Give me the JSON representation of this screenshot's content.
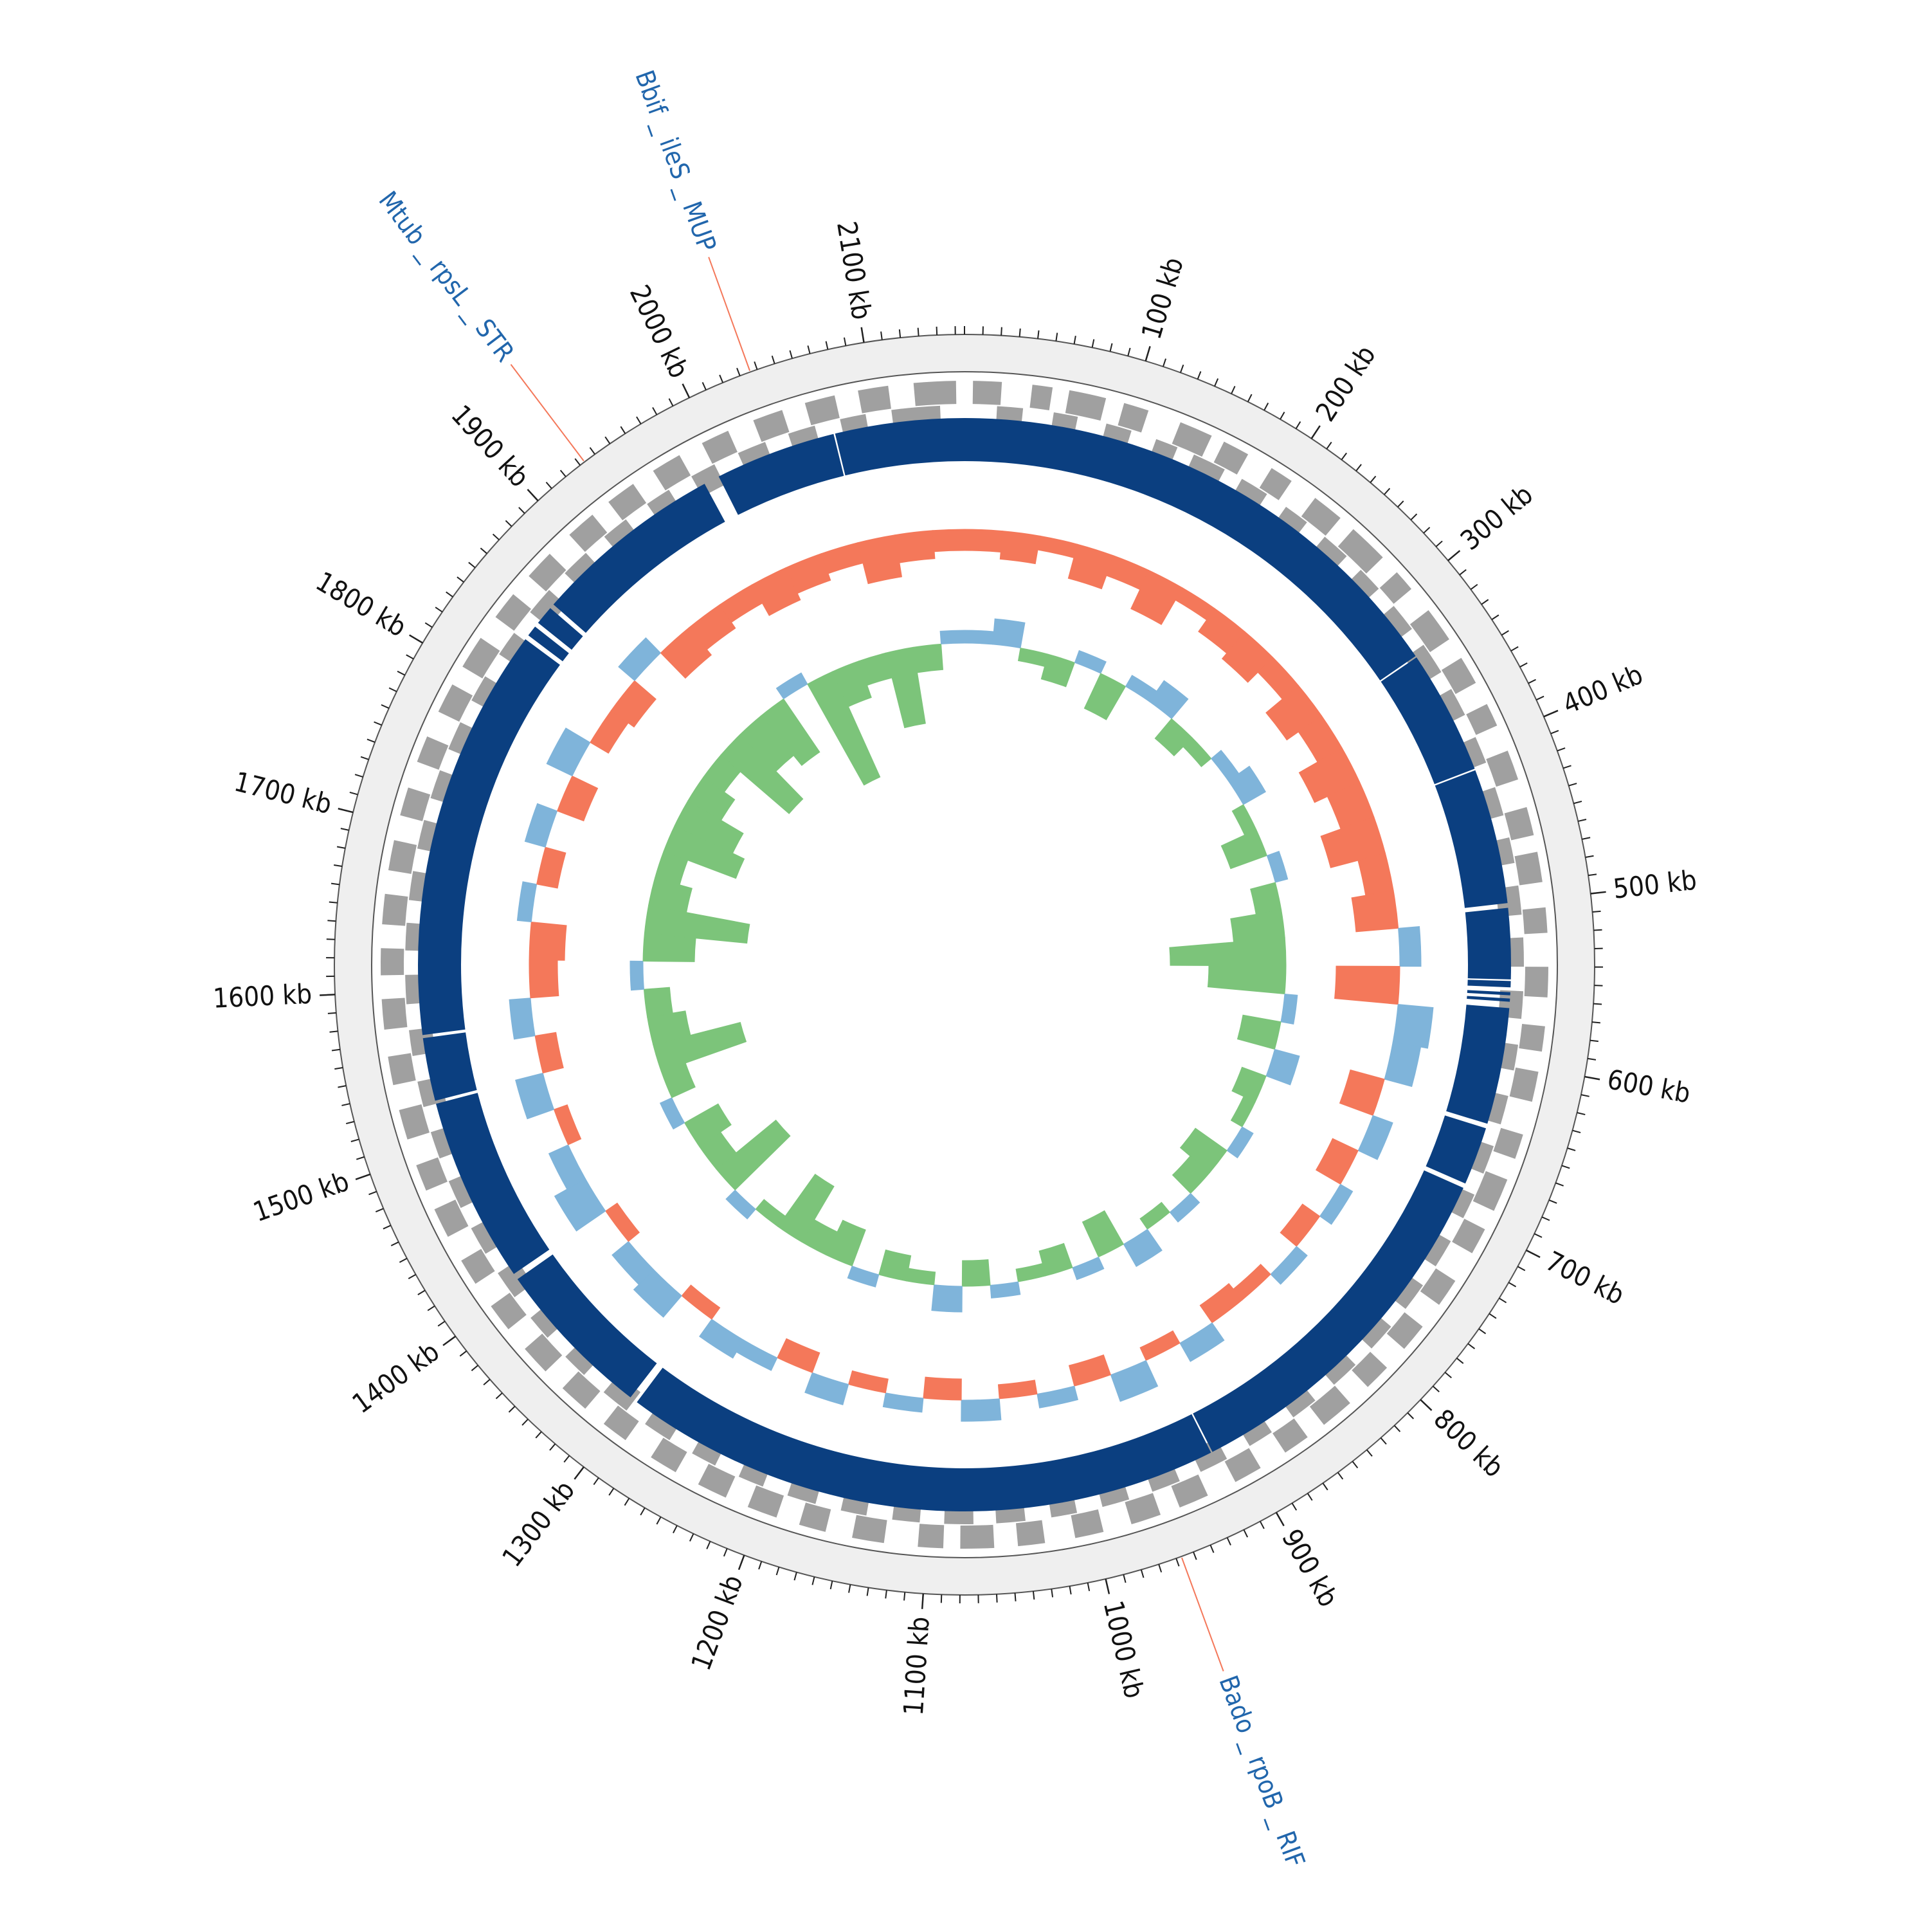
{
  "chart_data": {
    "type": "circular-genome",
    "xlim": [
      0,
      2155
    ],
    "xticks": [
      {
        "value": 100,
        "label": "100 kb"
      },
      {
        "value": 200,
        "label": "200 kb"
      },
      {
        "value": 300,
        "label": "300 kb"
      },
      {
        "value": 400,
        "label": "400 kb"
      },
      {
        "value": 500,
        "label": "500 kb"
      },
      {
        "value": 600,
        "label": "600 kb"
      },
      {
        "value": 700,
        "label": "700 kb"
      },
      {
        "value": 800,
        "label": "800 kb"
      },
      {
        "value": 900,
        "label": "900 kb"
      },
      {
        "value": 1000,
        "label": "1000 kb"
      },
      {
        "value": 1100,
        "label": "1100 kb"
      },
      {
        "value": 1200,
        "label": "1200 kb"
      },
      {
        "value": 1300,
        "label": "1300 kb"
      },
      {
        "value": 1400,
        "label": "1400 kb"
      },
      {
        "value": 1500,
        "label": "1500 kb"
      },
      {
        "value": 1600,
        "label": "1600 kb"
      },
      {
        "value": 1700,
        "label": "1700 kb"
      },
      {
        "value": 1800,
        "label": "1800 kb"
      },
      {
        "value": 1900,
        "label": "1900 kb"
      },
      {
        "value": 2000,
        "label": "2000 kb"
      },
      {
        "value": 2100,
        "label": "2100 kb"
      }
    ],
    "minor_tick_interval": 10,
    "annotations": [
      {
        "label": "Mtub _ rpsL _ STR",
        "position": 1933
      },
      {
        "label": "Bbif _ ileS _ MUP",
        "position": 2036
      },
      {
        "label": "Bado _ rpoB _ RIF",
        "position": 957
      }
    ],
    "annotation_color": "#2166ac",
    "annotation_line_color": "#f4785a",
    "genes": {
      "color": "#a0a0a0",
      "forward": {
        "start": [
          5,
          40,
          62,
          95,
          130,
          158,
          190,
          221,
          250,
          286,
          315,
          349,
          380,
          410,
          445,
          472,
          505,
          540,
          575,
          602,
          640,
          668,
          700,
          735,
          768,
          800,
          830,
          862,
          895,
          930,
          960,
          995,
          1030,
          1060,
          1090,
          1125,
          1160,
          1190,
          1222,
          1255,
          1290,
          1320,
          1352,
          1385,
          1418,
          1450,
          1480,
          1512,
          1545,
          1578,
          1610,
          1640,
          1672,
          1705,
          1738,
          1770,
          1800,
          1835,
          1866,
          1900,
          1930,
          1962,
          1995,
          2028,
          2060,
          2092,
          2125
        ],
        "end": [
          22,
          52,
          84,
          110,
          150,
          174,
          204,
          240,
          274,
          299,
          336,
          366,
          394,
          428,
          462,
          490,
          520,
          558,
          590,
          620,
          655,
          688,
          716,
          752,
          785,
          816,
          850,
          878,
          912,
          948,
          978,
          1012,
          1046,
          1080,
          1105,
          1144,
          1176,
          1208,
          1240,
          1272,
          1306,
          1338,
          1370,
          1402,
          1434,
          1468,
          1496,
          1530,
          1562,
          1596,
          1626,
          1658,
          1690,
          1722,
          1754,
          1788,
          1820,
          1852,
          1884,
          1918,
          1948,
          1980,
          2012,
          2046,
          2078,
          2110,
          2150
        ]
      },
      "reverse": {
        "start": [
          20,
          55,
          88,
          120,
          145,
          178,
          210,
          240,
          270,
          300,
          330,
          362,
          395,
          428,
          460,
          490,
          522,
          555,
          588,
          620,
          652,
          684,
          716,
          748,
          780,
          812,
          845,
          878,
          910,
          942,
          975,
          1008,
          1040,
          1072,
          1105,
          1138,
          1170,
          1204,
          1236,
          1268,
          1300,
          1334,
          1366,
          1398,
          1430,
          1462,
          1495,
          1528,
          1560,
          1592,
          1625,
          1656,
          1688,
          1720,
          1752,
          1785,
          1818,
          1850,
          1882,
          1915,
          1948,
          1980,
          2012,
          2045,
          2078,
          2110
        ],
        "end": [
          36,
          70,
          104,
          134,
          166,
          196,
          226,
          258,
          286,
          318,
          350,
          380,
          412,
          446,
          476,
          508,
          540,
          572,
          604,
          638,
          670,
          700,
          734,
          766,
          798,
          830,
          862,
          894,
          928,
          960,
          992,
          1024,
          1058,
          1090,
          1122,
          1154,
          1188,
          1220,
          1252,
          1286,
          1318,
          1350,
          1382,
          1416,
          1448,
          1480,
          1512,
          1544,
          1576,
          1610,
          1642,
          1674,
          1706,
          1738,
          1770,
          1802,
          1834,
          1868,
          1900,
          1932,
          1964,
          1996,
          2030,
          2062,
          2094,
          2140
        ]
      }
    },
    "contigs": {
      "color": "#0b3f80",
      "start": [
        0,
        334,
        414,
        503,
        549,
        556,
        560,
        566,
        643,
        683,
        917,
        1303,
        1410,
        1530,
        1572,
        1838,
        1848,
        1863,
        1995,
        2073
      ],
      "end": [
        333,
        413,
        500,
        548,
        553,
        558,
        562,
        640,
        680,
        916,
        1298,
        1406,
        1528,
        1570,
        1835,
        1845,
        1860,
        1985,
        2072,
        2155
      ]
    },
    "x": [
      0,
      30,
      60,
      90,
      120,
      150,
      180,
      210,
      240,
      270,
      300,
      330,
      360,
      390,
      420,
      450,
      480,
      510,
      540,
      570,
      600,
      630,
      660,
      690,
      720,
      750,
      780,
      810,
      840,
      870,
      900,
      930,
      960,
      990,
      1020,
      1050,
      1080,
      1110,
      1140,
      1170,
      1200,
      1230,
      1260,
      1290,
      1320,
      1350,
      1380,
      1410,
      1440,
      1470,
      1500,
      1530,
      1560,
      1590,
      1620,
      1650,
      1680,
      1710,
      1740,
      1770,
      1800,
      1830,
      1860,
      1890,
      1920,
      1950,
      1980,
      2010,
      2040,
      2070,
      2100,
      2130
    ],
    "gc_content": {
      "ylim": [
        -10,
        10
      ],
      "positive_color": "#7fb4da",
      "negative_color": "#f4785a",
      "values": [
        -3,
        -4,
        -2,
        -5,
        -3,
        -6,
        -2,
        -4,
        -5,
        -3,
        -6,
        -4,
        -7,
        -5,
        -8,
        -4,
        -6,
        3,
        -9,
        5,
        4,
        -5,
        3,
        -4,
        2,
        -3,
        2,
        -2,
        -3,
        3,
        -2,
        4,
        -3,
        2,
        -2,
        3,
        -3,
        2,
        -2,
        3,
        -3,
        2,
        3,
        -2,
        4,
        3,
        -2,
        5,
        3,
        -2,
        4,
        -3,
        3,
        -4,
        -5,
        2,
        -3,
        3,
        -4,
        4,
        -3,
        -4,
        3,
        -5,
        -4,
        -3,
        -5,
        -4,
        -3,
        -6,
        -4,
        -3
      ]
    },
    "gc_skew": {
      "ylim": [
        -10,
        10
      ],
      "positive_color": "#7fb4da",
      "negative_color": "#7cc47a",
      "values": [
        1,
        2,
        -1,
        -2,
        1,
        -3,
        1,
        2,
        -2,
        -1,
        1,
        2,
        -1,
        -3,
        1,
        -2,
        -4,
        -9,
        -6,
        1,
        -3,
        2,
        -2,
        -1,
        1,
        -3,
        -2,
        1,
        -1,
        2,
        -3,
        1,
        -2,
        -1,
        1,
        -2,
        2,
        -1,
        -2,
        1,
        -3,
        -2,
        -5,
        -1,
        1,
        -6,
        -2,
        -3,
        1,
        -2,
        -7,
        -3,
        -2,
        1,
        -4,
        -8,
        -3,
        -2,
        -6,
        -5,
        -3,
        -2,
        -7,
        -4,
        -5,
        1,
        -9,
        -3,
        -2,
        -6,
        -2,
        1
      ]
    }
  }
}
